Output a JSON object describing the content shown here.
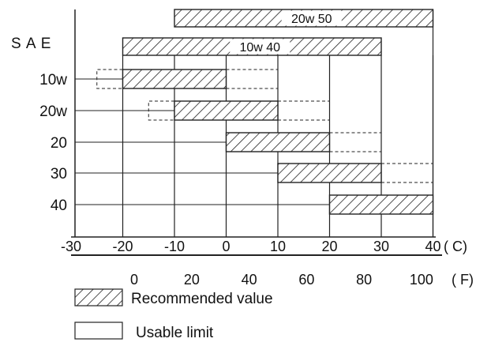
{
  "chart_data": {
    "type": "bar",
    "axis_title": "S A E",
    "celsius_ticks": [
      "-30",
      "-20",
      "-10",
      "0",
      "10",
      "20",
      "30",
      "40"
    ],
    "celsius_unit": "( C)",
    "fahrenheit_ticks": [
      "0",
      "20",
      "40",
      "60",
      "80",
      "100"
    ],
    "fahrenheit_unit": "( F)",
    "xlim_c": [
      -30,
      40
    ],
    "grades": [
      {
        "label": "10w",
        "recommended": [
          -20,
          0
        ],
        "usable": [
          -25,
          10
        ]
      },
      {
        "label": "20w",
        "recommended": [
          -10,
          10
        ],
        "usable": [
          -15,
          20
        ]
      },
      {
        "label": "20",
        "recommended": [
          0,
          20
        ],
        "usable": [
          0,
          30
        ]
      },
      {
        "label": "30",
        "recommended": [
          10,
          30
        ],
        "usable": [
          10,
          40
        ]
      },
      {
        "label": "40",
        "recommended": [
          20,
          40
        ],
        "usable": [
          20,
          40
        ]
      }
    ],
    "multigrade": [
      {
        "label": "20w 50",
        "range": [
          -10,
          40
        ]
      },
      {
        "label": "10w 40",
        "range": [
          -20,
          30
        ]
      }
    ],
    "legend": {
      "recommended": "Recommended value",
      "usable": "Usable limit"
    }
  }
}
